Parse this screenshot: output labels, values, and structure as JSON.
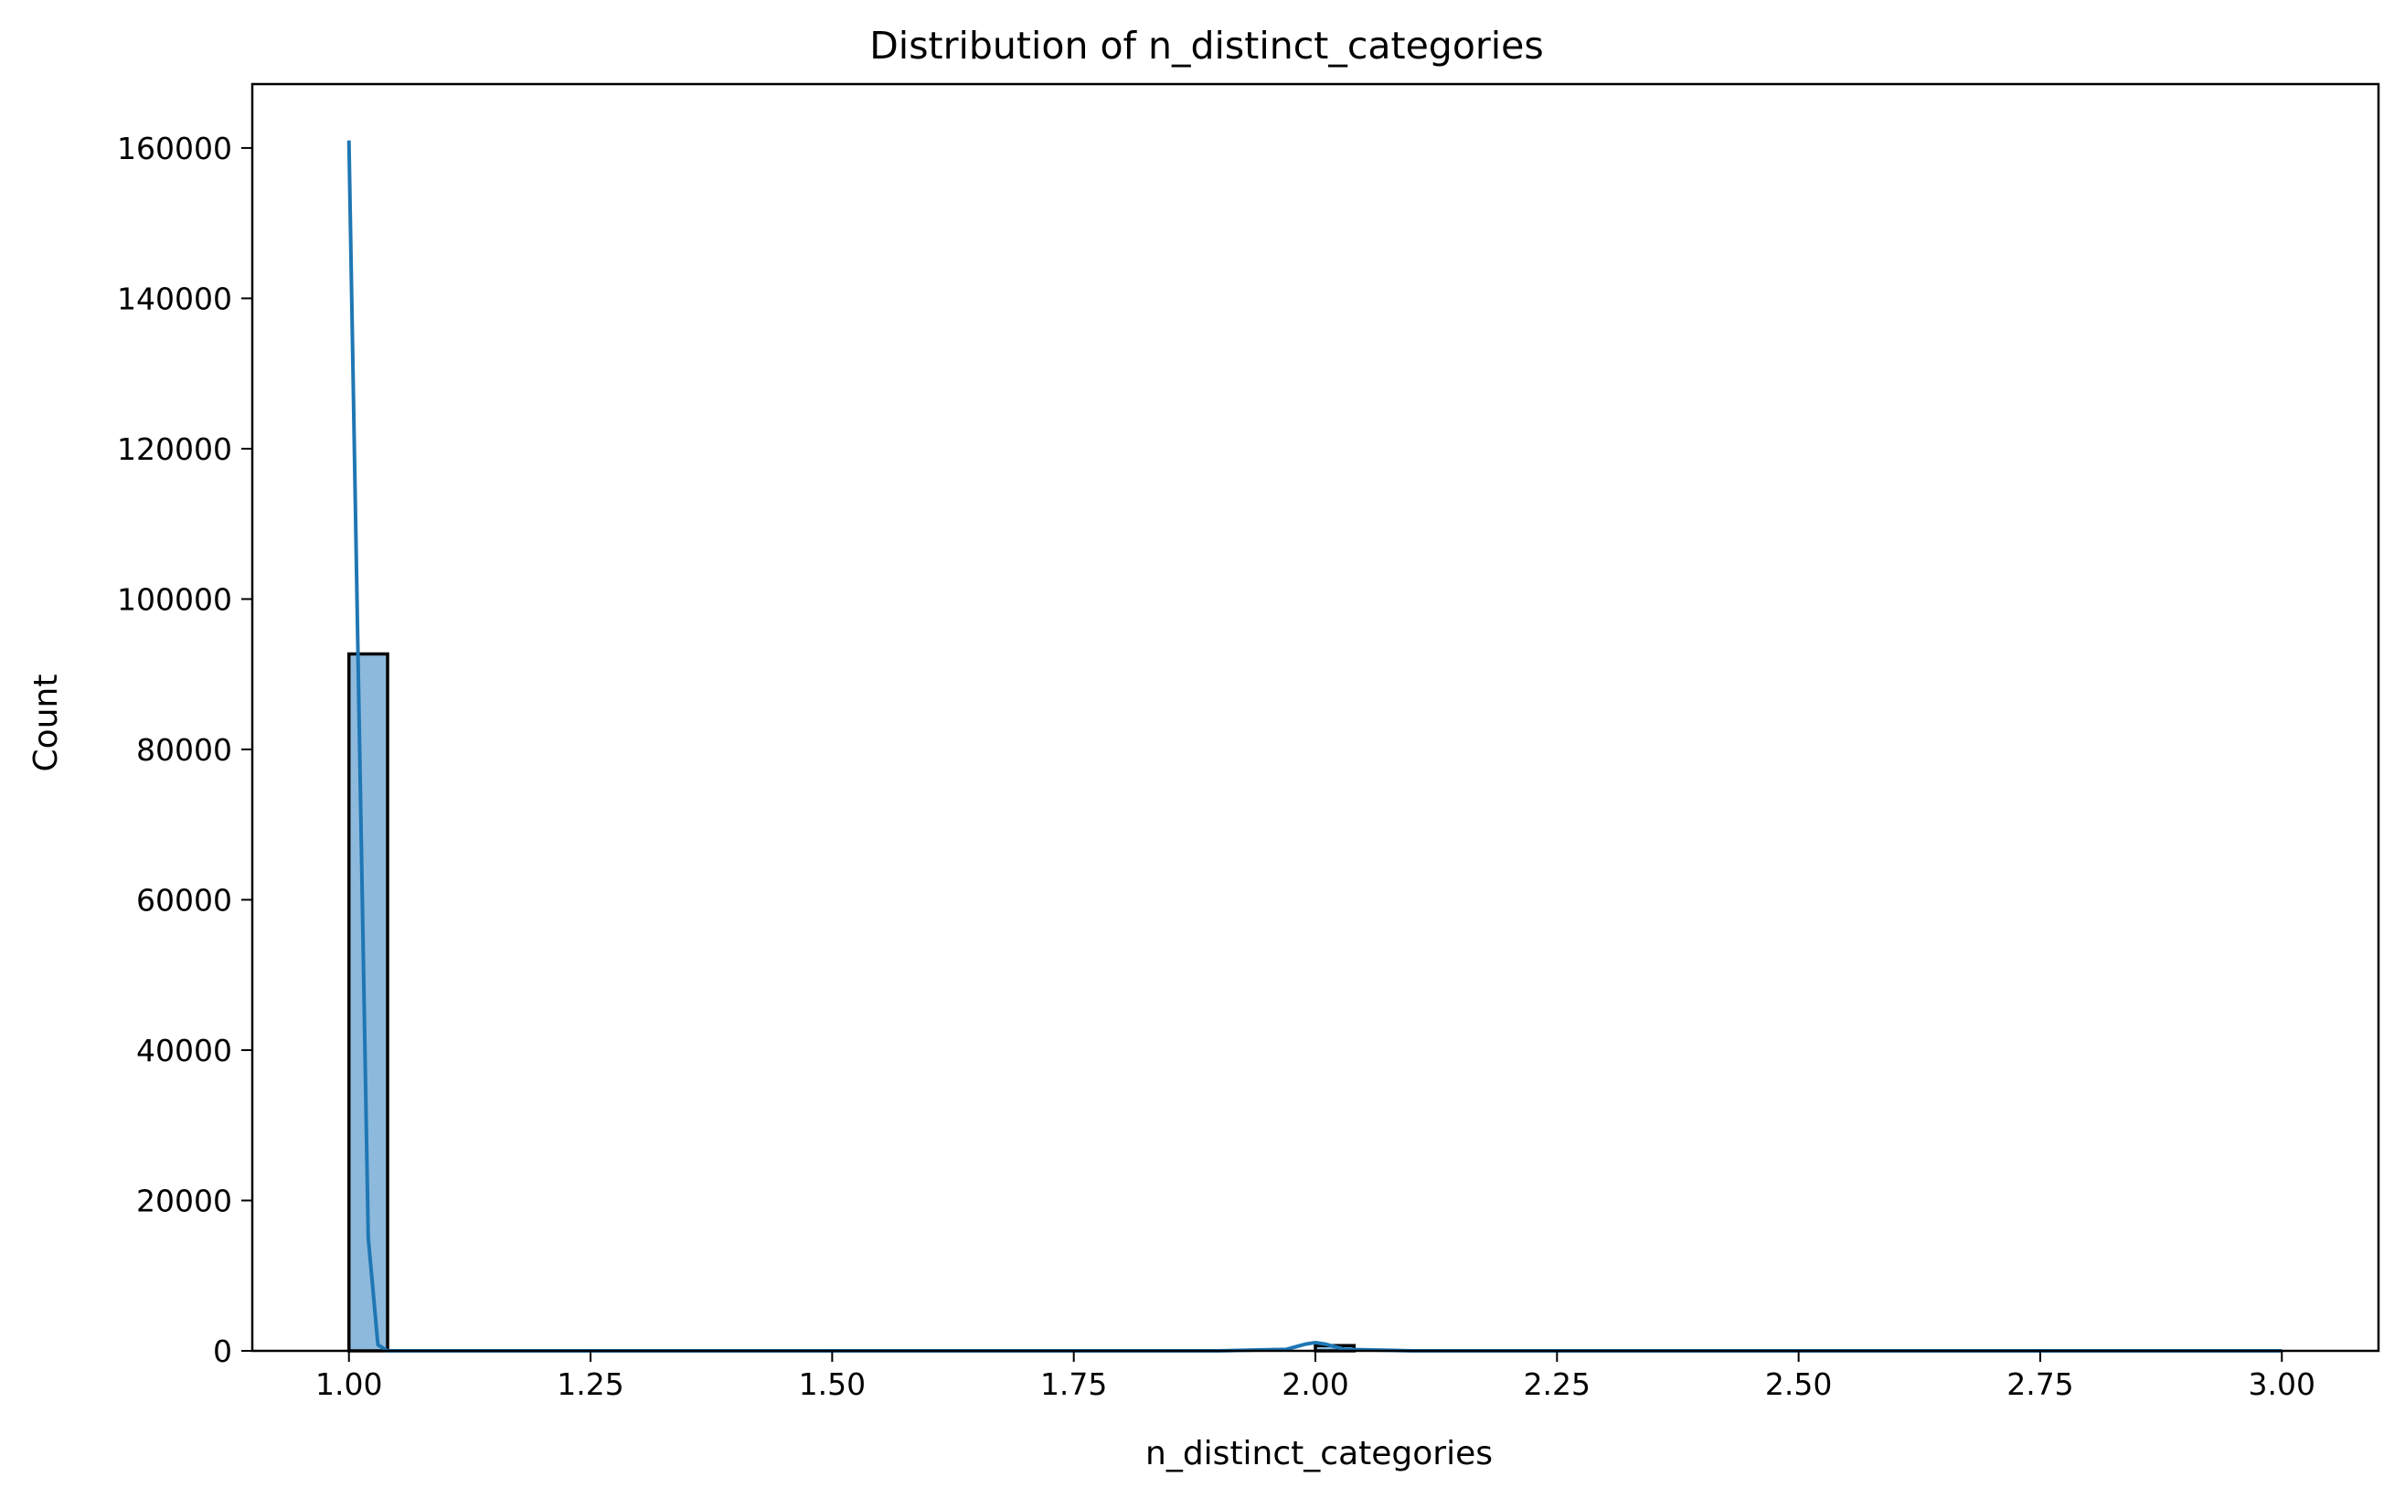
{
  "chart_data": {
    "type": "bar",
    "title": "Distribution of n_distinct_categories",
    "xlabel": "n_distinct_categories",
    "ylabel": "Count",
    "xlim": [
      0.9,
      3.1
    ],
    "ylim": [
      0,
      168500
    ],
    "x_ticks": [
      1.0,
      1.25,
      1.5,
      1.75,
      2.0,
      2.25,
      2.5,
      2.75,
      3.0
    ],
    "x_tick_labels": [
      "1.00",
      "1.25",
      "1.50",
      "1.75",
      "2.00",
      "2.25",
      "2.50",
      "2.75",
      "3.00"
    ],
    "y_ticks": [
      0,
      20000,
      40000,
      60000,
      80000,
      100000,
      120000,
      140000,
      160000
    ],
    "y_tick_labels": [
      "0",
      "20000",
      "40000",
      "60000",
      "80000",
      "100000",
      "120000",
      "140000",
      "160000"
    ],
    "grid": false,
    "bins": [
      {
        "x0": 1.0,
        "x1": 1.04,
        "count": 92700
      },
      {
        "x0": 2.0,
        "x1": 2.04,
        "count": 700
      }
    ],
    "kde": {
      "x": [
        1.0,
        1.02,
        1.03,
        1.04,
        1.2,
        1.5,
        1.9,
        1.97,
        1.99,
        2.0,
        2.01,
        2.03,
        2.1,
        2.5,
        3.0
      ],
      "y": [
        161000,
        15000,
        800,
        0,
        0,
        0,
        0,
        200,
        900,
        1100,
        900,
        200,
        0,
        0,
        0
      ]
    },
    "colors": {
      "bar_fill": "#8db9dc",
      "bar_edge": "#000000",
      "kde_line": "#1f77b4",
      "axes": "#000000"
    }
  }
}
